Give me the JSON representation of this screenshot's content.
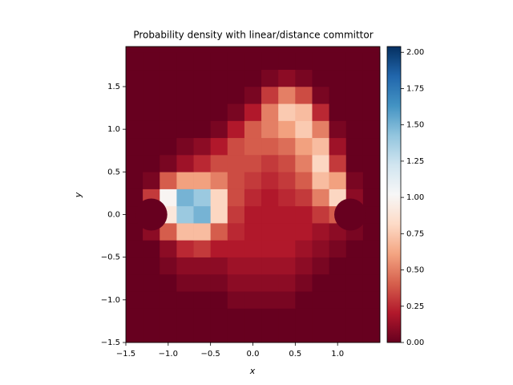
{
  "chart_data": {
    "type": "heatmap",
    "title": "Probability density with linear/distance committor",
    "xlabel": "x",
    "ylabel": "y",
    "colormap": "RdBu",
    "xlim": [
      -1.5,
      1.5
    ],
    "ylim": [
      -1.5,
      1.97
    ],
    "xticks": [
      {
        "value": -1.5,
        "label": "−1.5"
      },
      {
        "value": -1.0,
        "label": "−1.0"
      },
      {
        "value": -0.5,
        "label": "−0.5"
      },
      {
        "value": 0,
        "label": "0.0"
      },
      0.5,
      {
        "value": 1,
        "label": "1.0"
      }
    ],
    "yticks": [
      {
        "value": -1.5,
        "label": "−1.5"
      },
      {
        "value": -1.0,
        "label": "−1.0"
      },
      {
        "value": -0.5,
        "label": "−0.5"
      },
      {
        "value": 0,
        "label": "0.0"
      },
      0.5,
      {
        "value": 1,
        "label": "1.0"
      },
      1.5
    ],
    "xbins": [
      -1.5,
      -1.3,
      -1.1,
      -0.9,
      -0.7,
      -0.5,
      -0.3,
      -0.1,
      0.1,
      0.3,
      0.5,
      0.7,
      0.9,
      1.1,
      1.3,
      1.5
    ],
    "ybins": [
      -1.5,
      -1.3,
      -1.1,
      -0.9,
      -0.7,
      -0.5,
      -0.3,
      -0.1,
      0.1,
      0.3,
      0.5,
      0.7,
      0.9,
      1.1,
      1.3,
      1.5,
      1.7,
      1.9
    ],
    "z": [
      [
        0,
        0,
        0,
        0,
        0,
        0,
        0,
        0,
        0,
        0,
        0,
        0,
        0,
        0,
        0
      ],
      [
        0,
        0,
        0,
        0,
        0,
        0,
        0,
        0,
        0,
        0,
        0,
        0,
        0,
        0,
        0
      ],
      [
        0,
        0,
        0,
        0,
        0,
        0,
        0.05,
        0.05,
        0.05,
        0.05,
        0,
        0,
        0,
        0,
        0
      ],
      [
        0,
        0,
        0,
        0.05,
        0.05,
        0.05,
        0.1,
        0.1,
        0.1,
        0.1,
        0.05,
        0,
        0,
        0,
        0
      ],
      [
        0,
        0,
        0.05,
        0.1,
        0.1,
        0.1,
        0.15,
        0.15,
        0.15,
        0.15,
        0.1,
        0.05,
        0,
        0,
        0
      ],
      [
        0,
        0,
        0.1,
        0.25,
        0.3,
        0.2,
        0.2,
        0.2,
        0.2,
        0.2,
        0.15,
        0.1,
        0.05,
        0,
        0
      ],
      [
        0,
        0.1,
        0.4,
        0.7,
        0.7,
        0.4,
        0.25,
        0.2,
        0.2,
        0.2,
        0.2,
        0.15,
        0.1,
        0.05,
        0
      ],
      [
        0,
        0,
        0.9,
        1.4,
        1.5,
        0.8,
        0.3,
        0.2,
        0.2,
        0.2,
        0.2,
        0.3,
        0.4,
        0,
        0
      ],
      [
        0,
        0.3,
        1.0,
        1.5,
        1.4,
        0.8,
        0.35,
        0.25,
        0.2,
        0.25,
        0.3,
        0.5,
        0.8,
        0.1,
        0
      ],
      [
        0,
        0.05,
        0.4,
        0.6,
        0.6,
        0.5,
        0.35,
        0.3,
        0.25,
        0.3,
        0.4,
        0.7,
        0.6,
        0.05,
        0
      ],
      [
        0,
        0,
        0.05,
        0.15,
        0.25,
        0.35,
        0.35,
        0.35,
        0.3,
        0.35,
        0.5,
        0.8,
        0.3,
        0,
        0
      ],
      [
        0,
        0,
        0,
        0.05,
        0.1,
        0.2,
        0.35,
        0.4,
        0.4,
        0.45,
        0.6,
        0.7,
        0.15,
        0,
        0
      ],
      [
        0,
        0,
        0,
        0,
        0,
        0.05,
        0.2,
        0.4,
        0.5,
        0.6,
        0.75,
        0.5,
        0.05,
        0,
        0
      ],
      [
        0,
        0,
        0,
        0,
        0,
        0,
        0.05,
        0.2,
        0.5,
        0.75,
        0.7,
        0.25,
        0,
        0,
        0
      ],
      [
        0,
        0,
        0,
        0,
        0,
        0,
        0,
        0.05,
        0.3,
        0.5,
        0.35,
        0.05,
        0,
        0,
        0
      ],
      [
        0,
        0,
        0,
        0,
        0,
        0,
        0,
        0,
        0.05,
        0.1,
        0.05,
        0,
        0,
        0,
        0
      ],
      [
        0,
        0,
        0,
        0,
        0,
        0,
        0,
        0,
        0,
        0,
        0,
        0,
        0,
        0,
        0
      ]
    ],
    "clim": [
      0,
      2.04
    ],
    "cticks": [
      {
        "value": 0,
        "label": "0.00"
      },
      0.25,
      {
        "value": 0.5,
        "label": "0.50"
      },
      0.75,
      {
        "value": 1,
        "label": "1.00"
      },
      1.25,
      {
        "value": 1.5,
        "label": "1.50"
      },
      1.75,
      {
        "value": 2,
        "label": "2.00"
      }
    ]
  }
}
